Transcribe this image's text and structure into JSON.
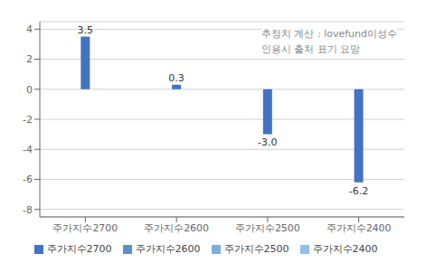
{
  "chart_data": {
    "type": "bar",
    "categories": [
      "주가지수2700",
      "주가지수2600",
      "주가지수2500",
      "주가지수2400"
    ],
    "values": [
      3.5,
      0.3,
      -3.0,
      -6.2
    ],
    "value_labels": [
      "3.5",
      "0.3",
      "-3.0",
      "-6.2"
    ],
    "data_labels": true,
    "color": "#4472c4",
    "ylim": [
      -8.5,
      4.5
    ],
    "yticks": [
      -8,
      -6,
      -4,
      -2,
      0,
      2,
      4
    ],
    "grid": true,
    "annotation": "추정치 계산 : lovefund이성수\n인용시 출처 표기 요망",
    "legend": "bottom",
    "legend_entries": [
      {
        "name": "주가지수2700",
        "color": "#4472c4"
      },
      {
        "name": "주가지수2600",
        "color": "#5b8fcf"
      },
      {
        "name": "주가지수2500",
        "color": "#7aaee0"
      },
      {
        "name": "주가지수2400",
        "color": "#92c0e8"
      }
    ]
  }
}
